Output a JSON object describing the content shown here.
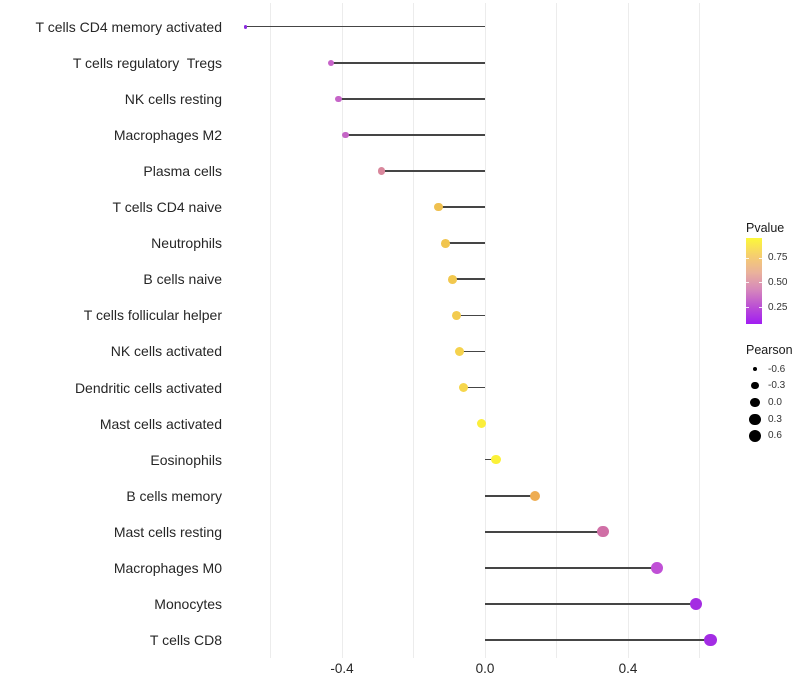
{
  "chart_data": {
    "type": "lollipop",
    "title": "",
    "xlabel": "",
    "ylabel": "",
    "grid": "vertical-only",
    "x_range": [
      -0.745,
      0.685
    ],
    "x_gridlines": [
      -0.6,
      -0.4,
      -0.2,
      0.0,
      0.2,
      0.4,
      0.6
    ],
    "x_ticks": [
      {
        "value": -0.4,
        "label": "-0.4"
      },
      {
        "value": 0.0,
        "label": "0.0"
      },
      {
        "value": 0.4,
        "label": "0.4"
      }
    ],
    "rows": [
      {
        "label": "T cells CD4 memory activated",
        "pearson": -0.67,
        "pvalue_approx": 0.1,
        "color": "#8b2be0"
      },
      {
        "label": "T cells regulatory  Tregs",
        "pearson": -0.43,
        "pvalue_approx": 0.33,
        "color": "#c763c9"
      },
      {
        "label": "NK cells resting",
        "pearson": -0.41,
        "pvalue_approx": 0.34,
        "color": "#c665c8"
      },
      {
        "label": "Macrophages M2",
        "pearson": -0.39,
        "pvalue_approx": 0.35,
        "color": "#c566c6"
      },
      {
        "label": "Plasma cells",
        "pearson": -0.29,
        "pvalue_approx": 0.5,
        "color": "#d9879c"
      },
      {
        "label": "T cells CD4 naive",
        "pearson": -0.13,
        "pvalue_approx": 0.72,
        "color": "#efc04f"
      },
      {
        "label": "Neutrophils",
        "pearson": -0.11,
        "pvalue_approx": 0.74,
        "color": "#f1c54e"
      },
      {
        "label": "B cells naive",
        "pearson": -0.09,
        "pvalue_approx": 0.75,
        "color": "#f2c84e"
      },
      {
        "label": "T cells follicular helper",
        "pearson": -0.08,
        "pvalue_approx": 0.76,
        "color": "#f3cb4e"
      },
      {
        "label": "NK cells activated",
        "pearson": -0.07,
        "pvalue_approx": 0.78,
        "color": "#f5d24d"
      },
      {
        "label": "Dendritic cells activated",
        "pearson": -0.06,
        "pvalue_approx": 0.79,
        "color": "#f6d64c"
      },
      {
        "label": "Mast cells activated",
        "pearson": -0.01,
        "pvalue_approx": 0.9,
        "color": "#fbee3b"
      },
      {
        "label": "Eosinophils",
        "pearson": 0.03,
        "pvalue_approx": 0.92,
        "color": "#fbf138"
      },
      {
        "label": "B cells memory",
        "pearson": 0.14,
        "pvalue_approx": 0.68,
        "color": "#eead52"
      },
      {
        "label": "Mast cells resting",
        "pearson": 0.33,
        "pvalue_approx": 0.45,
        "color": "#d06fa6"
      },
      {
        "label": "Macrophages M0",
        "pearson": 0.48,
        "pvalue_approx": 0.28,
        "color": "#c050d6"
      },
      {
        "label": "Monocytes",
        "pearson": 0.59,
        "pvalue_approx": 0.1,
        "color": "#a42ce2"
      },
      {
        "label": "T cells CD8",
        "pearson": 0.63,
        "pvalue_approx": 0.09,
        "color": "#a32ce4"
      }
    ],
    "legend_pvalue": {
      "title": "Pvalue",
      "scale_top_value": 0.95,
      "scale_bottom_value": 0.08,
      "ticks": [
        {
          "value": 0.75,
          "label": "0.75"
        },
        {
          "value": 0.5,
          "label": "0.50"
        },
        {
          "value": 0.25,
          "label": "0.25"
        }
      ],
      "gradient_top_to_bottom": [
        "#fcf839",
        "#f6cf6d",
        "#eab29b",
        "#d688bb",
        "#bb4fd4",
        "#a11df2"
      ]
    },
    "legend_pearson": {
      "title": "Pearson",
      "dot_color": "#000000",
      "entries": [
        {
          "value": -0.6,
          "label": "-0.6"
        },
        {
          "value": -0.3,
          "label": "-0.3"
        },
        {
          "value": 0.0,
          "label": "0.0"
        },
        {
          "value": 0.3,
          "label": "0.3"
        },
        {
          "value": 0.6,
          "label": "0.6"
        }
      ]
    },
    "size_scale": {
      "domain": [
        -0.671,
        0.627
      ]
    }
  },
  "styles": {
    "background": "#ffffff",
    "stem_color": "#454545",
    "gridline_color": "#ececec",
    "axis_text_color": "#262626",
    "legend_text_color": "#333333"
  }
}
